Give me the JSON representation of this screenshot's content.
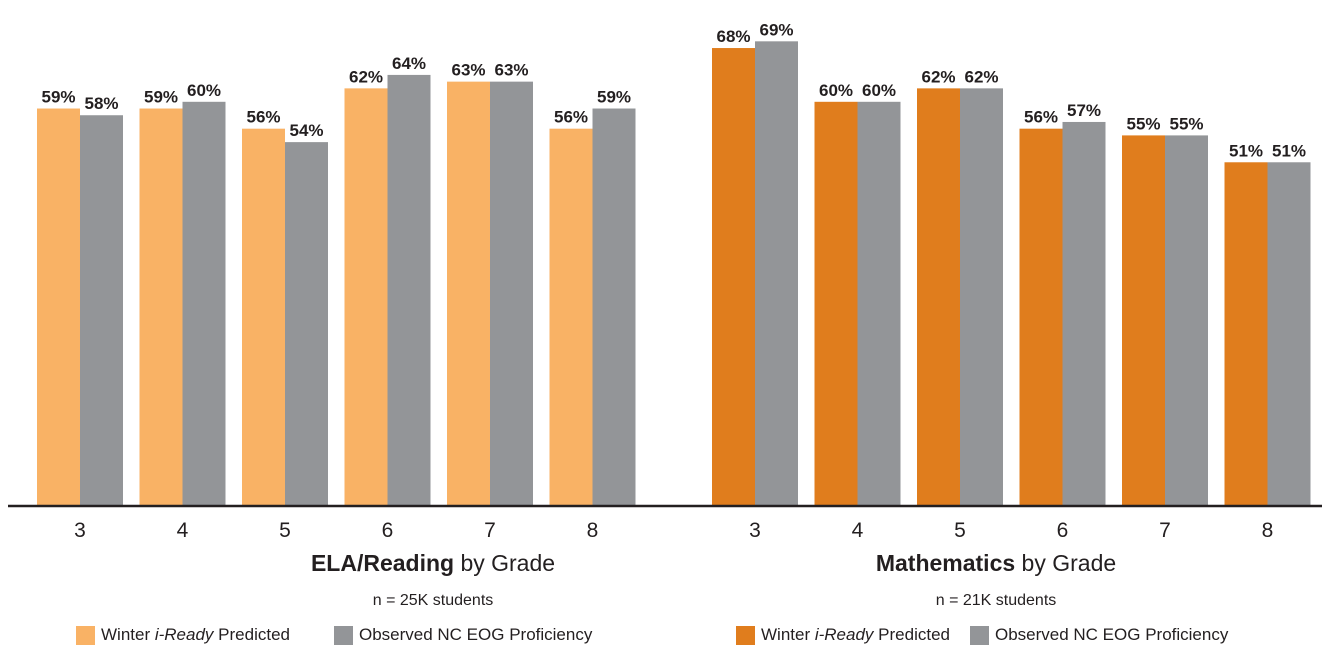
{
  "chart_data": [
    {
      "type": "bar",
      "title": "ELA/Reading by Grade",
      "title_bold": "ELA/Reading",
      "title_rest": " by Grade",
      "subtitle": "n = 25K students",
      "categories": [
        "3",
        "4",
        "5",
        "6",
        "7",
        "8"
      ],
      "series": [
        {
          "name": "Winter i-Ready Predicted",
          "color": "#f9b265",
          "values": [
            59,
            59,
            56,
            62,
            63,
            56
          ]
        },
        {
          "name": "Observed NC EOG Proficiency",
          "color": "#939598",
          "values": [
            58,
            60,
            54,
            64,
            63,
            59
          ]
        }
      ],
      "value_suffix": "%",
      "legend": [
        {
          "pre": "Winter ",
          "italic": "i-Ready",
          "post": " Predicted",
          "color": "#f9b265"
        },
        {
          "pre": "Observed NC EOG Proficiency",
          "italic": "",
          "post": "",
          "color": "#939598"
        }
      ]
    },
    {
      "type": "bar",
      "title": "Mathematics by Grade",
      "title_bold": "Mathematics",
      "title_rest": " by Grade",
      "subtitle": "n = 21K students",
      "categories": [
        "3",
        "4",
        "5",
        "6",
        "7",
        "8"
      ],
      "series": [
        {
          "name": "Winter i-Ready Predicted",
          "color": "#e07d1d",
          "values": [
            68,
            60,
            62,
            56,
            55,
            51
          ]
        },
        {
          "name": "Observed NC EOG Proficiency",
          "color": "#939598",
          "values": [
            69,
            60,
            62,
            57,
            55,
            51
          ]
        }
      ],
      "value_suffix": "%",
      "legend": [
        {
          "pre": "Winter ",
          "italic": "i-Ready",
          "post": " Predicted",
          "color": "#e07d1d"
        },
        {
          "pre": "Observed NC EOG Proficiency",
          "italic": "",
          "post": "",
          "color": "#939598"
        }
      ]
    }
  ]
}
